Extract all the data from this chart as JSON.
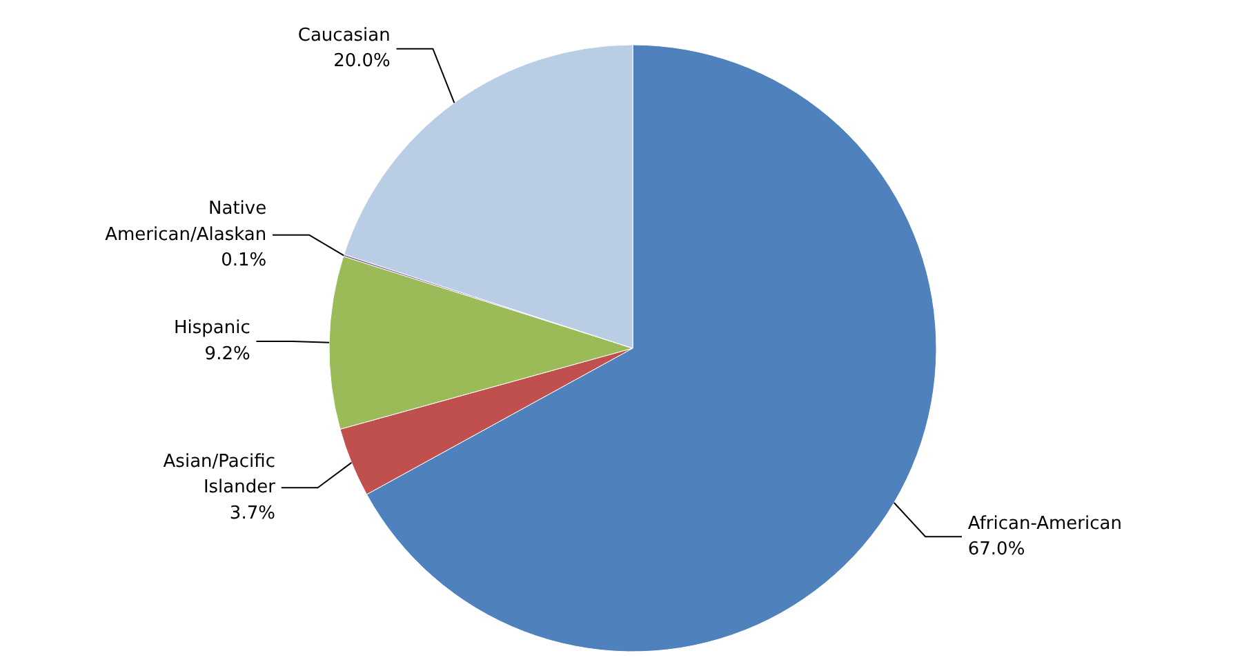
{
  "chart_data": {
    "type": "pie",
    "categories": [
      "African-American",
      "Asian/Pacific Islander",
      "Hispanic",
      "Native American/Alaskan",
      "Caucasian"
    ],
    "values": [
      67.0,
      3.7,
      9.2,
      0.1,
      20.0
    ],
    "colors": [
      "#4f81bd",
      "#c0504d",
      "#9bbb59",
      "#8064a2",
      "#b9cde5"
    ],
    "value_labels": [
      "67.0%",
      "3.7%",
      "9.2%",
      "0.1%",
      "20.0%"
    ]
  }
}
